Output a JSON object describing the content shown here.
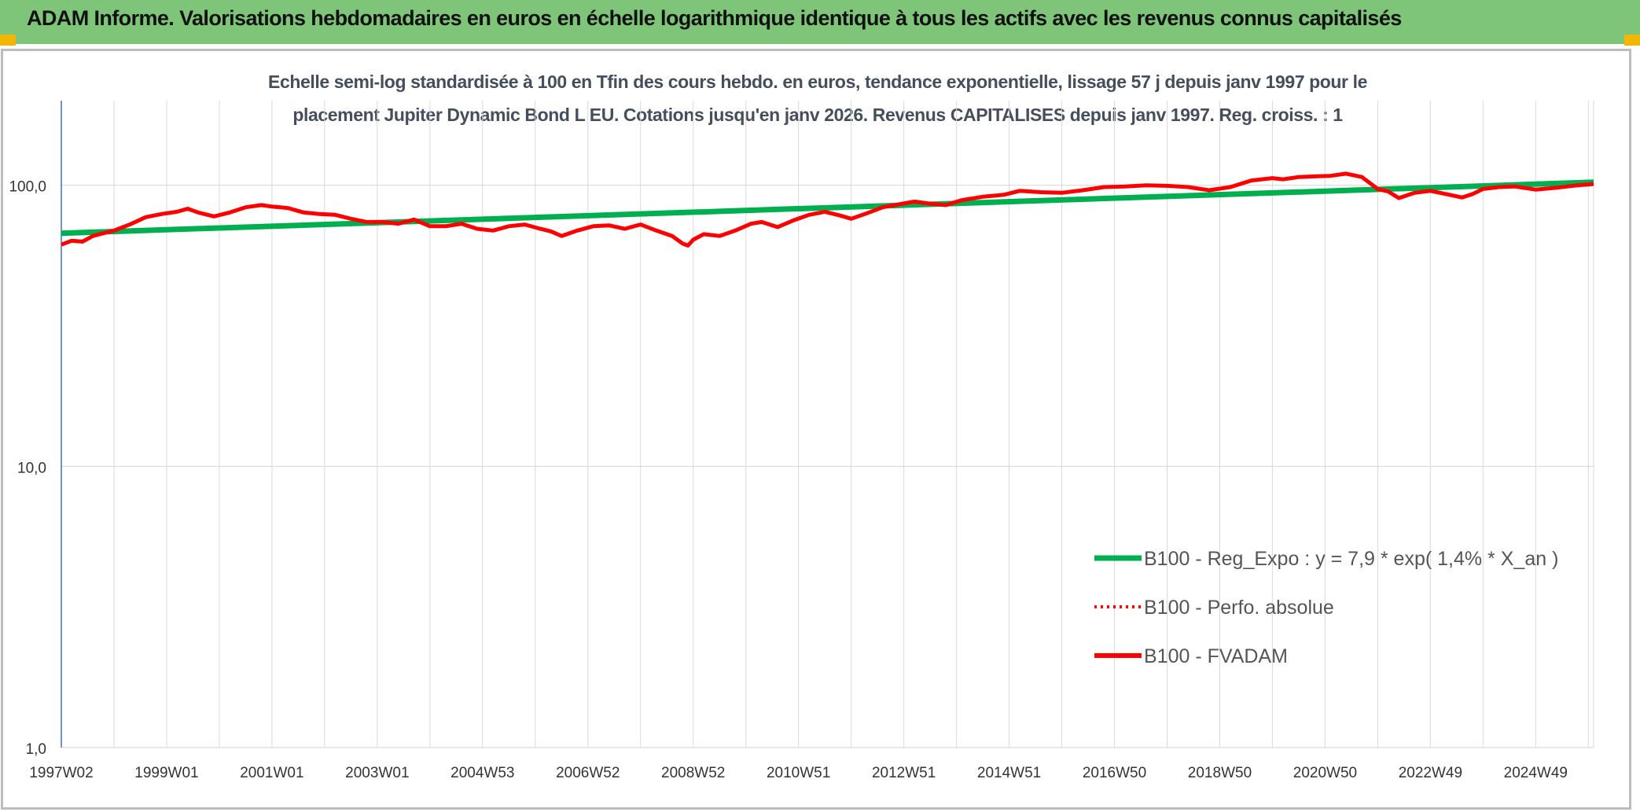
{
  "header": {
    "title": "ADAM Informe. Valorisations hebdomadaires en euros en échelle logarithmique identique à tous les actifs avec les revenus connus capitalisés"
  },
  "colors": {
    "header_bg": "#7ec57a",
    "corner_accent": "#f2b705",
    "regression": "#00b050",
    "fvadam": "#ff0000",
    "perfo": "#ff0000",
    "grid": "#d9d9d9",
    "axis": "#4472c4"
  },
  "chart_data": {
    "type": "line",
    "title_line1": "Echelle semi-log standardisée à 100 en Tfin des cours hebdo. en euros, tendance exponentielle, lissage 57 j depuis janv 1997 pour le",
    "title_line2": "placement Jupiter Dynamic Bond L EU. Cotations jusqu'en janv 2026. Revenus CAPITALISES depuis janv 1997. Reg. croiss. : 1",
    "y_scale": "log",
    "ylim": [
      1,
      200
    ],
    "y_ticks": [
      {
        "value": 1,
        "label": "1,0"
      },
      {
        "value": 10,
        "label": "10,0"
      },
      {
        "value": 100,
        "label": "100,0"
      }
    ],
    "xlim": [
      1997.0,
      2026.1
    ],
    "x_ticks": [
      {
        "value": 1997.0,
        "label": "1997W02"
      },
      {
        "value": 1999.0,
        "label": "1999W01"
      },
      {
        "value": 2001.0,
        "label": "2001W01"
      },
      {
        "value": 2003.0,
        "label": "2003W01"
      },
      {
        "value": 2005.0,
        "label": "2004W53"
      },
      {
        "value": 2007.0,
        "label": "2006W52"
      },
      {
        "value": 2009.0,
        "label": "2008W52"
      },
      {
        "value": 2011.0,
        "label": "2010W51"
      },
      {
        "value": 2013.0,
        "label": "2012W51"
      },
      {
        "value": 2015.0,
        "label": "2014W51"
      },
      {
        "value": 2017.0,
        "label": "2016W50"
      },
      {
        "value": 2019.0,
        "label": "2018W50"
      },
      {
        "value": 2021.0,
        "label": "2020W50"
      },
      {
        "value": 2023.0,
        "label": "2022W49"
      },
      {
        "value": 2025.0,
        "label": "2024W49"
      }
    ],
    "legend_position": "right",
    "series": [
      {
        "name": "B100 - Reg_Expo : y = 7,9 * exp( 1,4% *  X_an )",
        "style": "solid-thick",
        "x": [
          1997.0,
          2026.1
        ],
        "y": [
          67.5,
          102.5
        ]
      },
      {
        "name": "B100 - Perfo. absolue",
        "style": "dotted",
        "x": [],
        "y": []
      },
      {
        "name": "B100 - FVADAM",
        "style": "solid",
        "x": [
          1997.0,
          1997.2,
          1997.4,
          1997.6,
          1997.8,
          1998.0,
          1998.3,
          1998.6,
          1998.9,
          1999.2,
          1999.4,
          1999.6,
          1999.9,
          2000.2,
          2000.5,
          2000.8,
          2001.0,
          2001.3,
          2001.6,
          2001.9,
          2002.2,
          2002.5,
          2002.8,
          2003.1,
          2003.4,
          2003.7,
          2004.0,
          2004.3,
          2004.6,
          2004.9,
          2005.2,
          2005.5,
          2005.8,
          2006.1,
          2006.3,
          2006.5,
          2006.8,
          2007.1,
          2007.4,
          2007.7,
          2008.0,
          2008.3,
          2008.6,
          2008.8,
          2008.9,
          2009.0,
          2009.2,
          2009.5,
          2009.8,
          2010.1,
          2010.3,
          2010.6,
          2010.9,
          2011.2,
          2011.5,
          2011.8,
          2012.0,
          2012.3,
          2012.6,
          2012.9,
          2013.2,
          2013.5,
          2013.8,
          2014.1,
          2014.5,
          2014.9,
          2015.2,
          2015.6,
          2016.0,
          2016.4,
          2016.8,
          2017.2,
          2017.6,
          2018.0,
          2018.4,
          2018.8,
          2019.2,
          2019.6,
          2020.0,
          2020.2,
          2020.5,
          2020.8,
          2021.1,
          2021.4,
          2021.7,
          2022.0,
          2022.2,
          2022.4,
          2022.7,
          2023.0,
          2023.3,
          2023.6,
          2023.8,
          2024.0,
          2024.3,
          2024.6,
          2025.0,
          2025.4,
          2025.8,
          2026.1
        ],
        "y": [
          61.5,
          63.5,
          63,
          66,
          67.5,
          69,
          72.5,
          77,
          79,
          80.5,
          82.5,
          80,
          77.5,
          80,
          83.5,
          85,
          84,
          83,
          80,
          79,
          78.5,
          76,
          74,
          74,
          73,
          75.5,
          71.5,
          71.5,
          73,
          70,
          69,
          71.5,
          72.5,
          70,
          68.5,
          66,
          69,
          71.5,
          72,
          70,
          72.5,
          69,
          66,
          62,
          61,
          64,
          67,
          66,
          69,
          73,
          74,
          71,
          75,
          78.5,
          80.5,
          78,
          76,
          79.5,
          83.5,
          85.5,
          87.5,
          86,
          85,
          88.5,
          91,
          92.5,
          95.5,
          94.5,
          94,
          96,
          98.5,
          99,
          100,
          99.5,
          98.5,
          96,
          98.5,
          104,
          106,
          105,
          107,
          107.5,
          108,
          110,
          107,
          97,
          95,
          90,
          94,
          95.5,
          93,
          90.5,
          93,
          97,
          98.5,
          99,
          96.5,
          98,
          100,
          101
        ]
      }
    ]
  }
}
